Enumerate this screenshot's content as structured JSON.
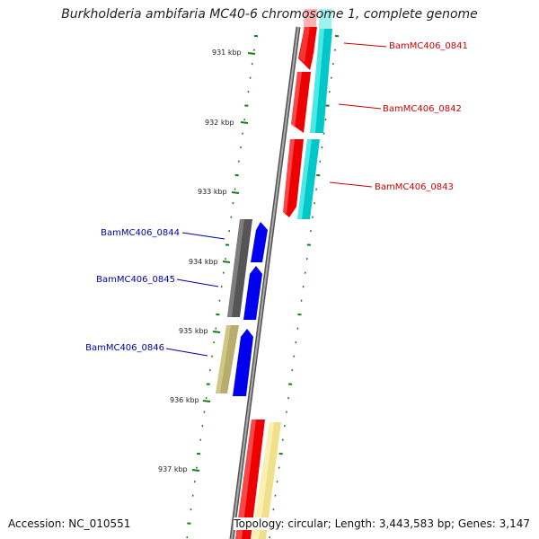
{
  "title": "Burkholderia ambifaria MC40-6 chromosome 1, complete genome",
  "accession": "Accession: NC_010551",
  "topology": "Topology: circular; Length: 3,443,583 bp; Genes: 3,147",
  "kbp_labels": [
    "931 kbp",
    "932 kbp",
    "933 kbp",
    "934 kbp",
    "935 kbp",
    "936 kbp",
    "937 kbp"
  ],
  "genes_right": [
    "BamMC406_0841",
    "BamMC406_0842",
    "BamMC406_0843"
  ],
  "genes_left": [
    "BamMC406_0844",
    "BamMC406_0845",
    "BamMC406_0846"
  ],
  "colors": {
    "right_label": "#cc0000",
    "left_label": "#0000aa",
    "tick": "#1a7a1a",
    "backbone": "#7a7a7a",
    "red": "#ee0000",
    "cyan": "#00c8c8",
    "blue": "#0000ee",
    "gray": "#555555",
    "khaki": "#b8ad6a",
    "yellow": "#f0e08c"
  }
}
